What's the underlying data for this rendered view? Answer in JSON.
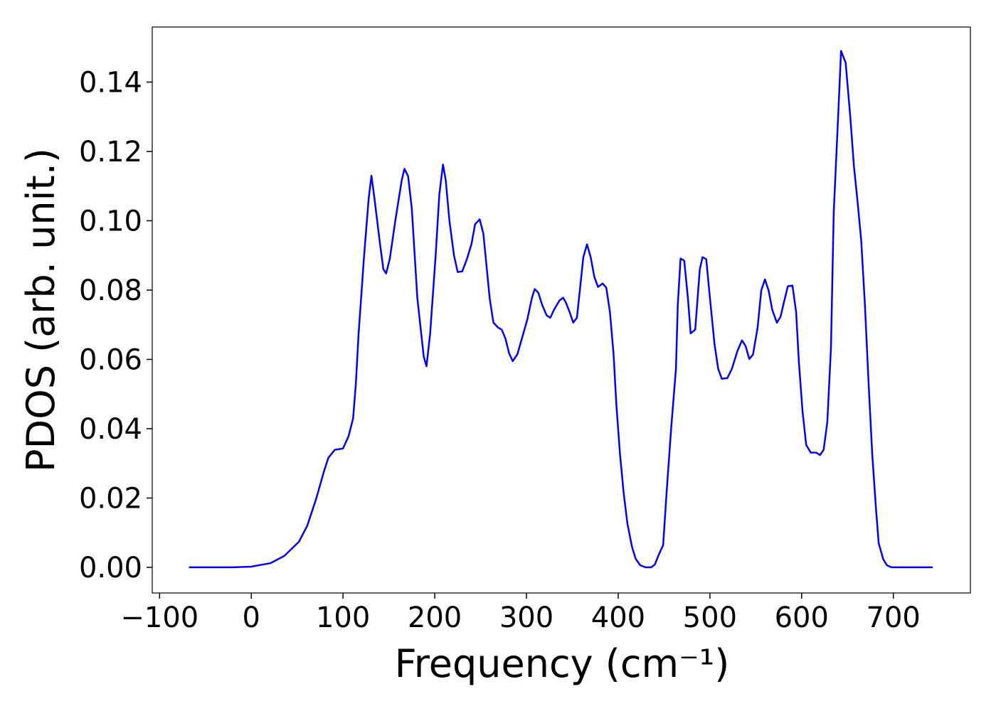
{
  "chart_data": {
    "type": "line",
    "xlabel": "Frequency (cm⁻¹)",
    "ylabel": "PDOS (arb. unit.)",
    "xlim": [
      -108,
      784
    ],
    "ylim": [
      -0.0074,
      0.1559
    ],
    "xticks": [
      {
        "value": -100,
        "label": "−100"
      },
      0,
      100,
      200,
      300,
      400,
      500,
      600,
      700
    ],
    "yticks": [
      {
        "value": 0,
        "label": "0.00"
      },
      {
        "value": 0.02,
        "label": "0.02"
      },
      {
        "value": 0.04,
        "label": "0.04"
      },
      {
        "value": 0.06,
        "label": "0.06"
      },
      {
        "value": 0.08,
        "label": "0.08"
      },
      {
        "value": 0.1,
        "label": "0.10"
      },
      {
        "value": 0.12,
        "label": "0.12"
      },
      {
        "value": 0.14,
        "label": "0.14"
      }
    ],
    "x": [
      -68,
      -40,
      -20,
      0,
      21,
      36,
      52,
      61,
      71,
      79,
      84,
      91,
      100,
      106,
      111,
      114,
      117,
      123,
      128,
      131,
      134,
      140,
      144,
      147,
      151,
      157,
      164,
      167,
      171,
      175,
      181,
      188,
      191,
      195,
      201,
      205,
      209,
      212,
      216,
      221,
      225,
      230,
      235,
      240,
      244,
      249,
      253,
      260,
      264,
      269,
      273,
      277,
      281,
      285,
      290,
      296,
      301,
      306,
      309,
      313,
      317,
      322,
      326,
      330,
      336,
      340,
      343,
      347,
      351,
      355,
      358,
      362,
      366,
      370,
      374,
      378,
      383,
      387,
      391,
      395,
      398,
      402,
      406,
      410,
      415,
      419,
      424,
      430,
      436,
      440,
      444,
      449,
      453,
      458,
      463,
      465,
      468,
      472,
      476,
      479,
      484,
      489,
      492,
      496,
      500,
      505,
      509,
      513,
      519,
      524,
      530,
      535,
      539,
      543,
      547,
      552,
      556,
      560,
      564,
      568,
      573,
      577,
      581,
      585,
      590,
      594,
      597,
      601,
      605,
      610,
      616,
      620,
      624,
      628,
      632,
      635,
      640,
      643,
      648,
      653,
      657,
      661,
      665,
      669,
      673,
      677,
      681,
      684,
      689,
      693,
      698,
      720,
      743
    ],
    "series": [
      {
        "color": "#0000ff",
        "values": [
          0,
          0,
          0,
          0.0002,
          0.0012,
          0.0033,
          0.0074,
          0.012,
          0.02,
          0.0275,
          0.0316,
          0.0339,
          0.0343,
          0.0378,
          0.043,
          0.053,
          0.0675,
          0.09,
          0.1065,
          0.113,
          0.107,
          0.094,
          0.086,
          0.0848,
          0.089,
          0.1,
          0.1117,
          0.115,
          0.1128,
          0.1035,
          0.0778,
          0.0608,
          0.058,
          0.0675,
          0.09,
          0.1076,
          0.1162,
          0.1117,
          0.1,
          0.09,
          0.0852,
          0.0854,
          0.0889,
          0.0932,
          0.099,
          0.1004,
          0.0963,
          0.0774,
          0.0706,
          0.0692,
          0.0686,
          0.0661,
          0.0618,
          0.0595,
          0.0614,
          0.0669,
          0.0716,
          0.0778,
          0.0803,
          0.0792,
          0.0758,
          0.0727,
          0.072,
          0.0743,
          0.077,
          0.0778,
          0.0764,
          0.0737,
          0.0706,
          0.072,
          0.0794,
          0.0895,
          0.0932,
          0.0895,
          0.0838,
          0.0809,
          0.0819,
          0.0807,
          0.0737,
          0.0614,
          0.047,
          0.0326,
          0.0214,
          0.0127,
          0.006,
          0.0025,
          0.0006,
          0,
          0,
          0.0008,
          0.0035,
          0.0064,
          0.0224,
          0.0409,
          0.0573,
          0.0758,
          0.0891,
          0.0885,
          0.0778,
          0.0675,
          0.0686,
          0.086,
          0.0895,
          0.0889,
          0.0778,
          0.0645,
          0.0573,
          0.0544,
          0.0546,
          0.0573,
          0.0624,
          0.0655,
          0.0638,
          0.0601,
          0.0614,
          0.0692,
          0.0799,
          0.0831,
          0.0799,
          0.0743,
          0.0706,
          0.0723,
          0.0768,
          0.0811,
          0.0813,
          0.0737,
          0.0593,
          0.045,
          0.0353,
          0.0331,
          0.0331,
          0.0324,
          0.0339,
          0.0419,
          0.0634,
          0.1024,
          0.1312,
          0.149,
          0.1456,
          0.1302,
          0.1158,
          0.1055,
          0.0942,
          0.0758,
          0.0532,
          0.0326,
          0.0172,
          0.007,
          0.0023,
          0.0006,
          0,
          0,
          0
        ]
      }
    ]
  }
}
